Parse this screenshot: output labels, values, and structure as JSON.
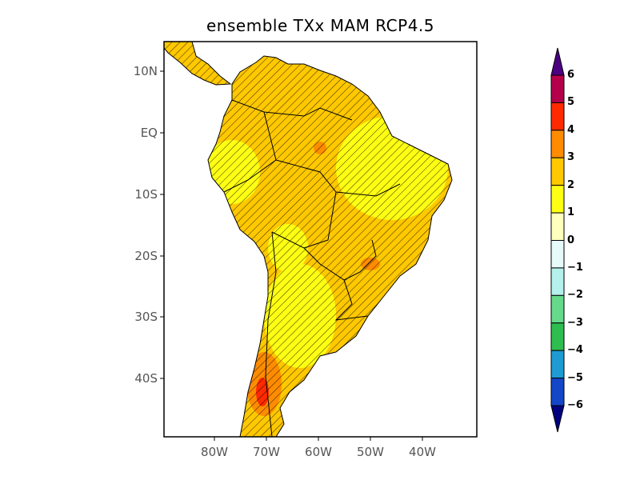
{
  "title": "ensemble TXx MAM RCP4.5",
  "map": {
    "lat_ticks": [
      "10N",
      "EQ",
      "10S",
      "20S",
      "30S",
      "40S"
    ],
    "lon_ticks": [
      "80W",
      "70W",
      "60W",
      "50W",
      "40W"
    ],
    "extent": {
      "lon": [
        -90,
        -30
      ],
      "lat": [
        -49.5,
        15
      ]
    },
    "land_fill_dominant": "#FFC800",
    "hatching": "diagonal lines over land (significance)"
  },
  "colorbar": {
    "labels": [
      "6",
      "5",
      "4",
      "3",
      "2",
      "1",
      "0",
      "-1",
      "-2",
      "-3",
      "-4",
      "-5",
      "-6"
    ],
    "colors": [
      "#B4004A",
      "#FF2A00",
      "#FF8C00",
      "#FFC800",
      "#FFFF14",
      "#FFFFBE",
      "#E6FAFA",
      "#B4F0EC",
      "#66D98A",
      "#2EBE50",
      "#1E9BD2",
      "#1446C8"
    ],
    "over_color": "#4B0082",
    "under_color": "#000080"
  }
}
